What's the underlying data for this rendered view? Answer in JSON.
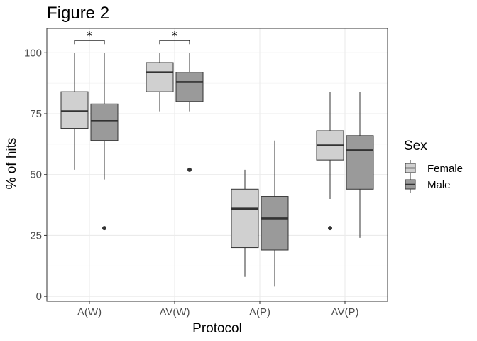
{
  "chart_data": {
    "type": "boxplot",
    "title": "Figure 2",
    "xlabel": "Protocol",
    "ylabel": "% of hits",
    "ylim": [
      -2,
      110
    ],
    "yticks": [
      0,
      25,
      50,
      75,
      100
    ],
    "categories": [
      "A(W)",
      "AV(W)",
      "A(P)",
      "AV(P)"
    ],
    "legend": {
      "title": "Sex",
      "position": "right"
    },
    "grid": true,
    "series": [
      {
        "name": "Female",
        "color": "#d0d0d0",
        "boxes": [
          {
            "whisker_low": 52,
            "q1": 69,
            "median": 76,
            "q3": 84,
            "whisker_high": 100,
            "outliers": []
          },
          {
            "whisker_low": 76,
            "q1": 84,
            "median": 92,
            "q3": 96,
            "whisker_high": 100,
            "outliers": []
          },
          {
            "whisker_low": 8,
            "q1": 20,
            "median": 36,
            "q3": 44,
            "whisker_high": 52,
            "outliers": []
          },
          {
            "whisker_low": 40,
            "q1": 56,
            "median": 62,
            "q3": 68,
            "whisker_high": 84,
            "outliers": [
              28
            ]
          }
        ]
      },
      {
        "name": "Male",
        "color": "#9a9a9a",
        "boxes": [
          {
            "whisker_low": 48,
            "q1": 64,
            "median": 72,
            "q3": 79,
            "whisker_high": 100,
            "outliers": [
              28
            ]
          },
          {
            "whisker_low": 76,
            "q1": 80,
            "median": 88,
            "q3": 92,
            "whisker_high": 100,
            "outliers": [
              52
            ]
          },
          {
            "whisker_low": 4,
            "q1": 19,
            "median": 32,
            "q3": 41,
            "whisker_high": 64,
            "outliers": []
          },
          {
            "whisker_low": 24,
            "q1": 44,
            "median": 60,
            "q3": 66,
            "whisker_high": 84,
            "outliers": []
          }
        ]
      }
    ],
    "annotations": [
      {
        "category": "A(W)",
        "text": "*"
      },
      {
        "category": "AV(W)",
        "text": "*"
      }
    ]
  }
}
